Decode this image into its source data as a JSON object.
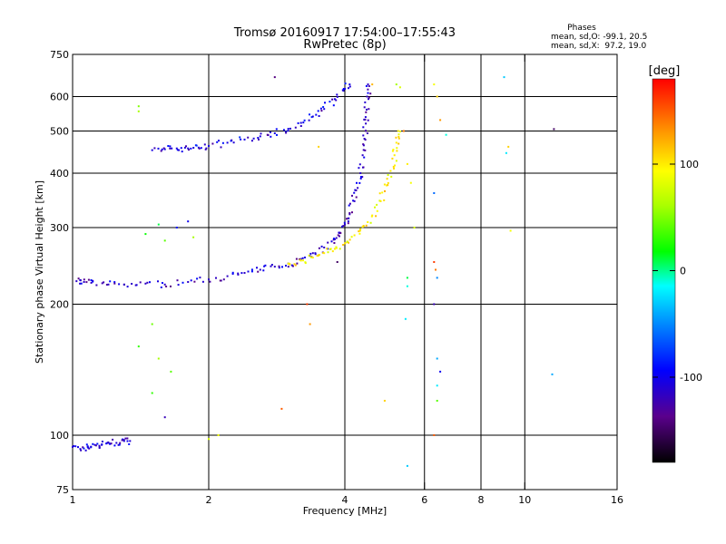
{
  "chart_data": {
    "type": "scatter",
    "title": "Tromsø 20160917 17:54:00–17:55:43",
    "subtitle": "RwPretec (8p)",
    "stats": {
      "heading": "Phases",
      "line1": "mean, sd,O: -99.1, 20.5",
      "line2": "mean, sd,X:  97.2, 19.0"
    },
    "xlabel": "Frequency [MHz]",
    "ylabel": "Stationary phase Virtual Height [km]",
    "x_scale": "log",
    "y_scale": "log",
    "xlim": [
      1,
      16
    ],
    "ylim": [
      75,
      750
    ],
    "x_ticks": [
      1,
      2,
      4,
      6,
      8,
      10,
      16
    ],
    "x_tick_labels": [
      "1",
      "2",
      "4",
      "6",
      "8",
      "10",
      "16"
    ],
    "y_ticks": [
      75,
      100,
      200,
      300,
      400,
      500,
      600,
      750
    ],
    "y_tick_labels": [
      "75",
      "100",
      "200",
      "300",
      "400",
      "500",
      "600",
      "750"
    ],
    "grid_x": [
      2,
      4,
      6,
      8,
      10
    ],
    "grid_y": [
      100,
      200,
      300,
      400,
      500,
      600
    ],
    "grid": true,
    "colorbar": {
      "label": "[deg]",
      "range": [
        -180,
        180
      ],
      "ticks": [
        100,
        0,
        -100
      ],
      "tick_labels": [
        "100",
        "0",
        "-100"
      ]
    },
    "series": [
      {
        "role": "O-mode E/low trace",
        "phase_deg": -110,
        "points": [
          [
            1.0,
            94
          ],
          [
            1.04,
            93
          ],
          [
            1.08,
            94
          ],
          [
            1.12,
            95
          ],
          [
            1.16,
            95
          ],
          [
            1.2,
            96
          ],
          [
            1.25,
            96
          ],
          [
            1.3,
            97
          ],
          [
            1.34,
            97
          ]
        ]
      },
      {
        "role": "O-mode F trace",
        "phase_deg": -115,
        "points": [
          [
            1.02,
            226
          ],
          [
            1.06,
            225
          ],
          [
            1.1,
            224
          ],
          [
            1.2,
            222
          ],
          [
            1.3,
            222
          ],
          [
            1.45,
            223
          ],
          [
            1.6,
            222
          ],
          [
            1.8,
            225
          ],
          [
            2.0,
            228
          ],
          [
            2.2,
            232
          ],
          [
            2.4,
            236
          ],
          [
            2.6,
            240
          ],
          [
            2.8,
            244
          ],
          [
            3.0,
            248
          ],
          [
            3.2,
            254
          ],
          [
            3.4,
            262
          ],
          [
            3.6,
            270
          ],
          [
            3.8,
            282
          ],
          [
            3.9,
            292
          ],
          [
            4.0,
            305
          ],
          [
            4.1,
            322
          ],
          [
            4.2,
            345
          ],
          [
            4.27,
            370
          ],
          [
            4.33,
            400
          ],
          [
            4.38,
            440
          ],
          [
            4.42,
            480
          ],
          [
            4.45,
            520
          ],
          [
            4.47,
            560
          ],
          [
            4.48,
            600
          ],
          [
            4.5,
            640
          ]
        ]
      },
      {
        "role": "O-mode F2 multi-hop trace",
        "phase_deg": -105,
        "points": [
          [
            1.5,
            452
          ],
          [
            1.6,
            454
          ],
          [
            1.7,
            456
          ],
          [
            1.8,
            456
          ],
          [
            1.9,
            458
          ],
          [
            2.0,
            462
          ],
          [
            2.2,
            470
          ],
          [
            2.4,
            478
          ],
          [
            2.6,
            486
          ],
          [
            2.8,
            494
          ],
          [
            3.0,
            506
          ],
          [
            3.2,
            522
          ],
          [
            3.4,
            540
          ],
          [
            3.6,
            562
          ],
          [
            3.8,
            592
          ],
          [
            4.0,
            625
          ],
          [
            4.1,
            640
          ]
        ]
      },
      {
        "role": "X-mode F trace",
        "phase_deg": 100,
        "points": [
          [
            3.0,
            248
          ],
          [
            3.2,
            252
          ],
          [
            3.4,
            256
          ],
          [
            3.6,
            262
          ],
          [
            3.8,
            268
          ],
          [
            4.0,
            276
          ],
          [
            4.2,
            288
          ],
          [
            4.4,
            302
          ],
          [
            4.6,
            320
          ],
          [
            4.8,
            345
          ],
          [
            4.95,
            375
          ],
          [
            5.05,
            405
          ],
          [
            5.15,
            440
          ],
          [
            5.2,
            470
          ],
          [
            5.25,
            500
          ]
        ]
      }
    ],
    "scattered_points": [
      [
        1.4,
        570,
        50
      ],
      [
        1.4,
        555,
        60
      ],
      [
        1.45,
        290,
        20
      ],
      [
        1.55,
        305,
        10
      ],
      [
        1.6,
        280,
        40
      ],
      [
        1.7,
        300,
        -90
      ],
      [
        1.8,
        310,
        -100
      ],
      [
        1.85,
        285,
        60
      ],
      [
        1.5,
        180,
        45
      ],
      [
        1.4,
        160,
        30
      ],
      [
        1.55,
        150,
        60
      ],
      [
        1.65,
        140,
        40
      ],
      [
        1.5,
        125,
        30
      ],
      [
        1.6,
        110,
        -120
      ],
      [
        2.0,
        98,
        80
      ],
      [
        2.1,
        100,
        90
      ],
      [
        2.8,
        665,
        -140
      ],
      [
        2.9,
        115,
        150
      ],
      [
        3.3,
        200,
        160
      ],
      [
        3.35,
        180,
        130
      ],
      [
        3.5,
        460,
        110
      ],
      [
        3.85,
        250,
        -150
      ],
      [
        4.6,
        640,
        120
      ],
      [
        4.9,
        120,
        110
      ],
      [
        5.2,
        640,
        60
      ],
      [
        5.3,
        630,
        80
      ],
      [
        5.4,
        500,
        140
      ],
      [
        5.5,
        420,
        100
      ],
      [
        5.6,
        380,
        90
      ],
      [
        5.7,
        300,
        80
      ],
      [
        5.5,
        230,
        10
      ],
      [
        5.5,
        220,
        -10
      ],
      [
        5.45,
        185,
        -20
      ],
      [
        5.5,
        85,
        -30
      ],
      [
        6.3,
        640,
        90
      ],
      [
        6.4,
        600,
        110
      ],
      [
        6.5,
        530,
        130
      ],
      [
        6.3,
        360,
        -60
      ],
      [
        6.3,
        250,
        160
      ],
      [
        6.35,
        240,
        140
      ],
      [
        6.4,
        230,
        -50
      ],
      [
        6.3,
        200,
        -120
      ],
      [
        6.4,
        150,
        -40
      ],
      [
        6.5,
        140,
        -100
      ],
      [
        6.4,
        130,
        -20
      ],
      [
        6.4,
        120,
        40
      ],
      [
        6.3,
        100,
        150
      ],
      [
        6.7,
        490,
        -10
      ],
      [
        9.0,
        665,
        -30
      ],
      [
        9.1,
        445,
        -20
      ],
      [
        9.2,
        460,
        110
      ],
      [
        9.3,
        295,
        90
      ],
      [
        11.6,
        505,
        -150
      ],
      [
        11.5,
        138,
        -40
      ]
    ]
  }
}
